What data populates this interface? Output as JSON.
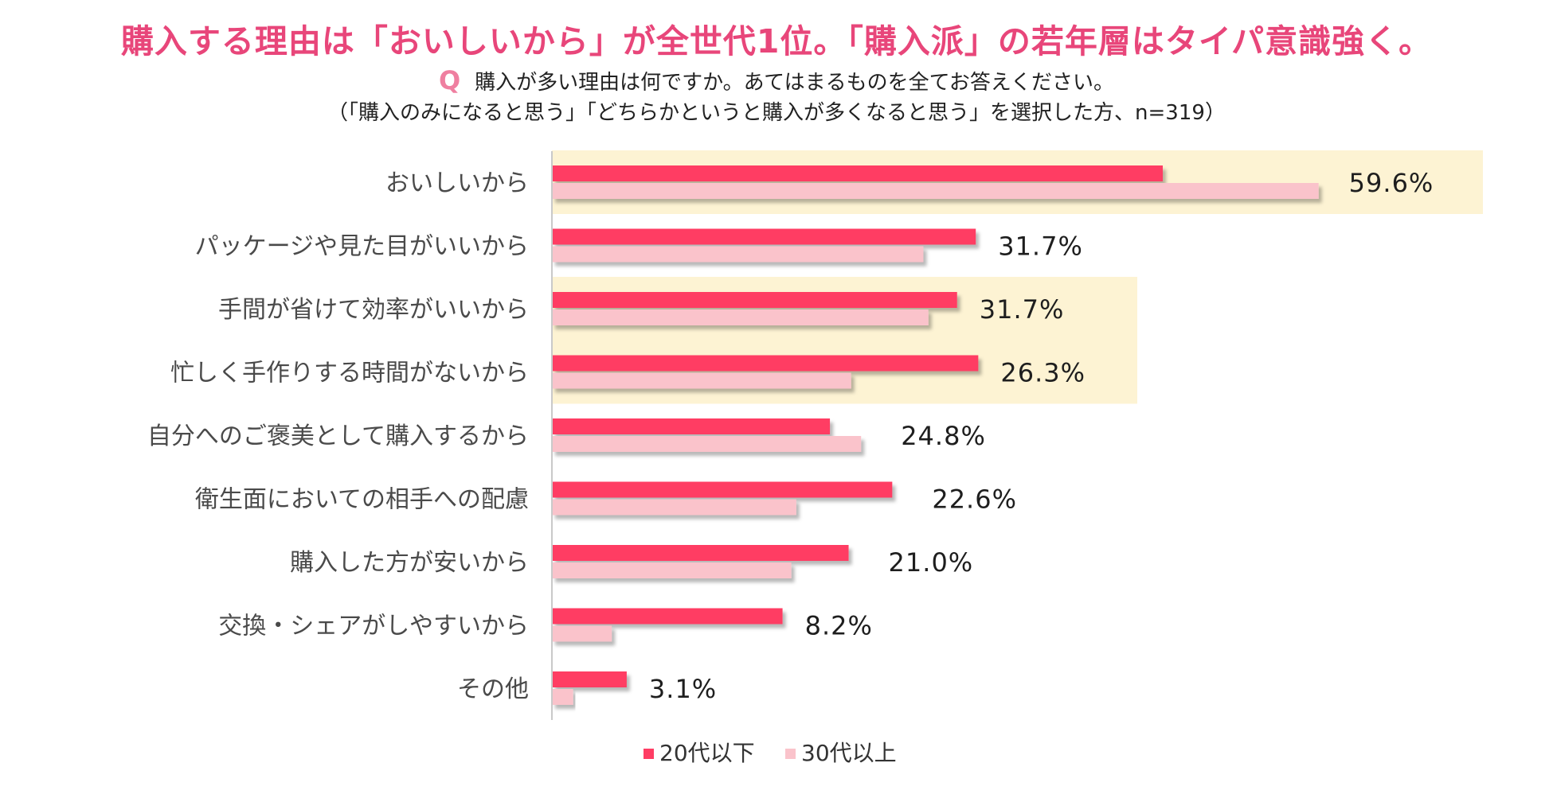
{
  "headline": "購入する理由は「おいしいから」が全世代1位。「購入派」の若年層はタイパ意識強く。",
  "question": {
    "mark": "Q",
    "line1": "購入が多い理由は何ですか。あてはまるものを全てお答えください。",
    "line2": "（「購入のみになると思う」「どちらかというと購入が多くなると思う」を選択した方、n=319）"
  },
  "chart_data": {
    "type": "bar",
    "orientation": "horizontal",
    "categories": [
      "おいしいから",
      "パッケージや見た目がいいから",
      "手間が省けて効率がいいから",
      "忙しく手作りする時間がないから",
      "自分へのご褒美として購入するから",
      "衛生面においての相手への配慮",
      "購入した方が安いから",
      "交換・シェアがしやすいから",
      "その他"
    ],
    "series": [
      {
        "name": "20代以下",
        "color": "#ff3d64",
        "values": [
          49.0,
          34.0,
          32.5,
          34.2,
          22.3,
          27.3,
          23.8,
          18.5,
          6.0
        ]
      },
      {
        "name": "30代以上",
        "color": "#fac3cb",
        "values": [
          61.5,
          29.8,
          30.2,
          24.0,
          24.8,
          19.6,
          19.2,
          4.8,
          1.7
        ]
      }
    ],
    "value_labels": [
      "59.6%",
      "31.7%",
      "31.7%",
      "26.3%",
      "24.8%",
      "22.6%",
      "21.0%",
      "8.2%",
      "3.1%"
    ],
    "highlighted_categories": [
      0,
      2,
      3
    ],
    "highlight_color": "#fdf3d3",
    "xlim": [
      0,
      75
    ],
    "legend_position": "bottom-center"
  }
}
